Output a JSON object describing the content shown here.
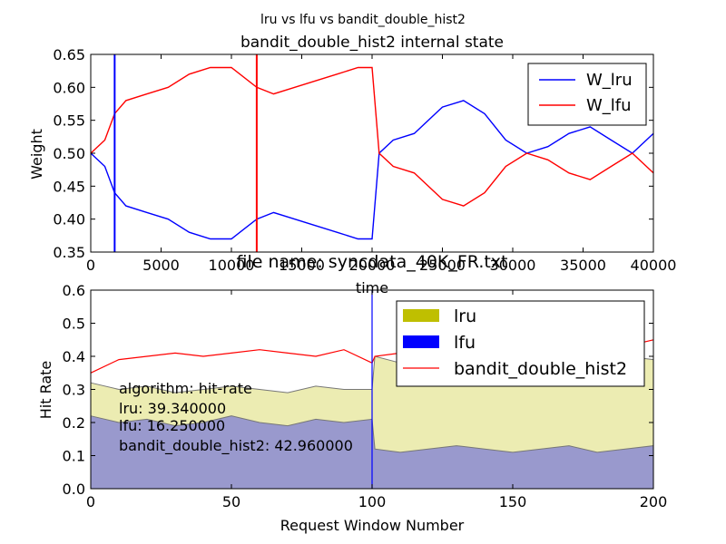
{
  "figure": {
    "suptitle": "lru vs lfu vs bandit_double_hist2"
  },
  "chart_data": [
    {
      "type": "line",
      "title": "bandit_double_hist2 internal state",
      "xlabel": "time",
      "ylabel": "Weight",
      "xlim": [
        0,
        40000
      ],
      "ylim": [
        0.35,
        0.65
      ],
      "x_ticks": [
        "0",
        "5000",
        "10000",
        "15000",
        "20000",
        "25000",
        "30000",
        "35000",
        "40000"
      ],
      "y_ticks": [
        "0.35",
        "0.40",
        "0.45",
        "0.50",
        "0.55",
        "0.60",
        "0.65"
      ],
      "legend_position": "top-right",
      "grid": false,
      "vlines": [
        {
          "x": 1700,
          "color": "#0000ff"
        },
        {
          "x": 11800,
          "color": "#ff0000"
        }
      ],
      "x": [
        0,
        1000,
        1700,
        2500,
        4000,
        5500,
        7000,
        8500,
        10000,
        11800,
        13000,
        14500,
        16000,
        17500,
        19000,
        20000,
        20500,
        21500,
        23000,
        25000,
        26500,
        28000,
        29500,
        31000,
        32500,
        34000,
        35500,
        37000,
        38500,
        40000
      ],
      "series": [
        {
          "name": "W_lru",
          "color": "#0000ff",
          "values": [
            0.5,
            0.48,
            0.44,
            0.42,
            0.41,
            0.4,
            0.38,
            0.37,
            0.37,
            0.4,
            0.41,
            0.4,
            0.39,
            0.38,
            0.37,
            0.37,
            0.5,
            0.52,
            0.53,
            0.57,
            0.58,
            0.56,
            0.52,
            0.5,
            0.51,
            0.53,
            0.54,
            0.52,
            0.5,
            0.53
          ]
        },
        {
          "name": "W_lfu",
          "color": "#ff0000",
          "values": [
            0.5,
            0.52,
            0.56,
            0.58,
            0.59,
            0.6,
            0.62,
            0.63,
            0.63,
            0.6,
            0.59,
            0.6,
            0.61,
            0.62,
            0.63,
            0.63,
            0.5,
            0.48,
            0.47,
            0.43,
            0.42,
            0.44,
            0.48,
            0.5,
            0.49,
            0.47,
            0.46,
            0.48,
            0.5,
            0.47
          ]
        }
      ]
    },
    {
      "type": "area",
      "title": "file name: syncdata_40K_FR.txt",
      "xlabel": "Request Window Number",
      "ylabel": "Hit Rate",
      "xlim": [
        0,
        200
      ],
      "ylim": [
        0.0,
        0.6
      ],
      "x_ticks": [
        "0",
        "50",
        "100",
        "150",
        "200"
      ],
      "y_ticks": [
        "0.0",
        "0.1",
        "0.2",
        "0.3",
        "0.4",
        "0.5",
        "0.6"
      ],
      "legend_position": "top-right",
      "grid": false,
      "vlines": [
        {
          "x": 100,
          "color": "#0000ff"
        }
      ],
      "annotation": [
        "algorithm:  hit-rate",
        "lru:  39.340000",
        "lfu:  16.250000",
        "bandit_double_hist2:  42.960000"
      ],
      "x": [
        0,
        10,
        20,
        30,
        40,
        50,
        60,
        70,
        80,
        90,
        100,
        101,
        110,
        120,
        130,
        140,
        150,
        160,
        170,
        180,
        190,
        200
      ],
      "series": [
        {
          "name": "lru",
          "kind": "fill",
          "color": "#bfbf00",
          "values": [
            0.32,
            0.3,
            0.31,
            0.29,
            0.3,
            0.31,
            0.3,
            0.29,
            0.31,
            0.3,
            0.3,
            0.4,
            0.38,
            0.39,
            0.4,
            0.39,
            0.38,
            0.39,
            0.4,
            0.39,
            0.4,
            0.39
          ]
        },
        {
          "name": "lfu",
          "kind": "fill",
          "color": "#0000ff",
          "values": [
            0.22,
            0.2,
            0.21,
            0.19,
            0.2,
            0.22,
            0.2,
            0.19,
            0.21,
            0.2,
            0.21,
            0.12,
            0.11,
            0.12,
            0.13,
            0.12,
            0.11,
            0.12,
            0.13,
            0.11,
            0.12,
            0.13
          ]
        },
        {
          "name": "bandit_double_hist2",
          "kind": "line",
          "color": "#ff0000",
          "values": [
            0.35,
            0.39,
            0.4,
            0.41,
            0.4,
            0.41,
            0.42,
            0.41,
            0.4,
            0.42,
            0.38,
            0.4,
            0.41,
            0.42,
            0.43,
            0.42,
            0.43,
            0.42,
            0.43,
            0.44,
            0.43,
            0.45
          ]
        }
      ]
    }
  ]
}
